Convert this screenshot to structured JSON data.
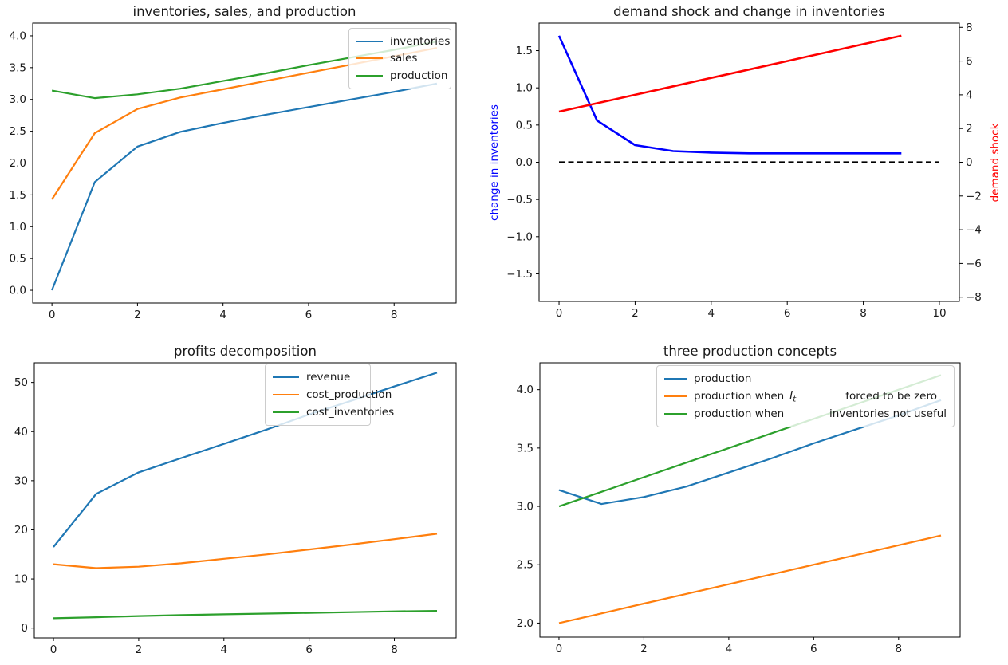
{
  "figure": {
    "background": "#ffffff",
    "text_color": "#1a1a1a",
    "accent_colors": {
      "mpl_blue": "#1f77b4",
      "mpl_orange": "#ff7f0e",
      "mpl_green": "#2ca02c",
      "pure_blue": "#0000ff",
      "pure_red": "#ff0000",
      "black": "#000000"
    }
  },
  "chart_data": [
    {
      "type": "line",
      "title": "inventories, sales, and production",
      "x": [
        0,
        1,
        2,
        3,
        4,
        5,
        6,
        7,
        8,
        9
      ],
      "xlim": [
        -0.45,
        9.45
      ],
      "xtick_values": [
        0,
        2,
        4,
        6,
        8
      ],
      "xtick_labels": [
        "0",
        "2",
        "4",
        "6",
        "8"
      ],
      "ylim": [
        -0.2,
        4.2
      ],
      "ytick_values": [
        0,
        0.5,
        1,
        1.5,
        2,
        2.5,
        3,
        3.5,
        4
      ],
      "ytick_labels": [
        "0.0",
        "0.5",
        "1.0",
        "1.5",
        "2.0",
        "2.5",
        "3.0",
        "3.5",
        "4.0"
      ],
      "grid": false,
      "legend_position": "upper right",
      "series": [
        {
          "name": "inventories",
          "color": "#1f77b4",
          "width": 2.2,
          "values": [
            0.0,
            1.7,
            2.26,
            2.49,
            2.63,
            2.76,
            2.88,
            3.0,
            3.12,
            3.25
          ]
        },
        {
          "name": "sales",
          "color": "#ff7f0e",
          "width": 2.2,
          "values": [
            1.43,
            2.47,
            2.85,
            3.03,
            3.16,
            3.29,
            3.42,
            3.55,
            3.68,
            3.81
          ]
        },
        {
          "name": "production",
          "color": "#2ca02c",
          "width": 2.2,
          "values": [
            3.14,
            3.02,
            3.08,
            3.17,
            3.29,
            3.41,
            3.54,
            3.66,
            3.78,
            3.91
          ]
        }
      ],
      "legend": {
        "rows": [
          {
            "label": "inventories",
            "series": 0
          },
          {
            "label": "sales",
            "series": 1
          },
          {
            "label": "production",
            "series": 2
          }
        ]
      }
    },
    {
      "type": "line",
      "title": "demand shock and change in inventories",
      "x": [
        0,
        1,
        2,
        3,
        4,
        5,
        6,
        7,
        8,
        9
      ],
      "xlim": [
        -0.525,
        10.525
      ],
      "xtick_values": [
        0,
        2,
        4,
        6,
        8,
        10
      ],
      "xtick_labels": [
        "0",
        "2",
        "4",
        "6",
        "8",
        "10"
      ],
      "ylim": [
        -1.87,
        1.87
      ],
      "ytick_values": [
        1.5,
        1.0,
        0.5,
        0.0,
        -0.5,
        -1.0,
        -1.5
      ],
      "ytick_labels": [
        "1.5",
        "1.0",
        "0.5",
        "0.0",
        "−0.5",
        "−1.0",
        "−1.5"
      ],
      "y2lim": [
        -8.25,
        8.25
      ],
      "y2tick_values": [
        8,
        6,
        4,
        2,
        0,
        -2,
        -4,
        -6,
        -8
      ],
      "y2tick_labels": [
        "8",
        "6",
        "4",
        "2",
        "0",
        "−2",
        "−4",
        "−6",
        "−8"
      ],
      "ylabel_left": {
        "text": "change in inventories",
        "color": "#0000ff"
      },
      "ylabel_right": {
        "text": "demand shock",
        "color": "#ff0000"
      },
      "grid": false,
      "series": [
        {
          "name": "zero line",
          "color": "#000000",
          "width": 2.2,
          "dash": [
            7,
            4.5
          ],
          "x": [
            0,
            10
          ],
          "values": [
            0,
            0
          ]
        },
        {
          "name": "change in inventories",
          "color": "#0000ff",
          "width": 2.6,
          "values": [
            1.7,
            0.56,
            0.23,
            0.15,
            0.13,
            0.12,
            0.12,
            0.12,
            0.12,
            0.12
          ]
        },
        {
          "name": "demand shock",
          "color": "#ff0000",
          "width": 2.6,
          "axis": "y2",
          "values": [
            3.0,
            3.5,
            4.0,
            4.5,
            5.0,
            5.5,
            6.0,
            6.5,
            7.0,
            7.5
          ]
        }
      ]
    },
    {
      "type": "line",
      "title": "profits decomposition",
      "x": [
        0,
        1,
        2,
        3,
        4,
        5,
        6,
        7,
        8,
        9
      ],
      "xlim": [
        -0.45,
        9.45
      ],
      "xtick_values": [
        0,
        2,
        4,
        6,
        8
      ],
      "xtick_labels": [
        "0",
        "2",
        "4",
        "6",
        "8"
      ],
      "ylim": [
        -2,
        54
      ],
      "ytick_values": [
        0,
        10,
        20,
        30,
        40,
        50
      ],
      "ytick_labels": [
        "0",
        "10",
        "20",
        "30",
        "40",
        "50"
      ],
      "grid": false,
      "legend_position": "upper right",
      "series": [
        {
          "name": "revenue",
          "color": "#1f77b4",
          "width": 2.2,
          "values": [
            16.5,
            27.3,
            31.7,
            34.6,
            37.5,
            40.4,
            43.5,
            46.3,
            49.2,
            52.0
          ]
        },
        {
          "name": "cost_production",
          "color": "#ff7f0e",
          "width": 2.2,
          "values": [
            13.0,
            12.2,
            12.5,
            13.2,
            14.1,
            15.0,
            16.0,
            17.0,
            18.1,
            19.2
          ]
        },
        {
          "name": "cost_inventories",
          "color": "#2ca02c",
          "width": 2.2,
          "values": [
            2.0,
            2.2,
            2.45,
            2.65,
            2.8,
            2.95,
            3.1,
            3.25,
            3.4,
            3.5
          ]
        }
      ],
      "legend": {
        "rows": [
          {
            "label": "revenue",
            "series": 0
          },
          {
            "label": "cost_production",
            "series": 1
          },
          {
            "label": "cost_inventories",
            "series": 2
          }
        ]
      }
    },
    {
      "type": "line",
      "title": "three production concepts",
      "x": [
        0,
        1,
        2,
        3,
        4,
        5,
        6,
        7,
        8,
        9
      ],
      "xlim": [
        -0.45,
        9.45
      ],
      "xtick_values": [
        0,
        2,
        4,
        6,
        8
      ],
      "xtick_labels": [
        "0",
        "2",
        "4",
        "6",
        "8"
      ],
      "ylim": [
        1.88,
        4.23
      ],
      "ytick_values": [
        2.0,
        2.5,
        3.0,
        3.5,
        4.0
      ],
      "ytick_labels": [
        "2.0",
        "2.5",
        "3.0",
        "3.5",
        "4.0"
      ],
      "grid": false,
      "legend_position": "upper center",
      "series": [
        {
          "name": "production",
          "color": "#1f77b4",
          "width": 2.2,
          "values": [
            3.14,
            3.02,
            3.08,
            3.17,
            3.29,
            3.41,
            3.54,
            3.66,
            3.78,
            3.91
          ]
        },
        {
          "name": "production when I_t forced to be zero",
          "color": "#ff7f0e",
          "width": 2.2,
          "values": [
            2.0,
            2.083,
            2.167,
            2.25,
            2.333,
            2.417,
            2.5,
            2.583,
            2.667,
            2.75
          ]
        },
        {
          "name": "production when inventories not useful",
          "color": "#2ca02c",
          "width": 2.2,
          "values": [
            3.0,
            3.125,
            3.25,
            3.375,
            3.5,
            3.625,
            3.75,
            3.875,
            4.0,
            4.125
          ]
        }
      ],
      "legend": {
        "rows": [
          {
            "label": "production",
            "series": 0
          },
          {
            "label": "production when",
            "math_var": "I",
            "math_sub": "t",
            "label_right": "forced to be zero",
            "series": 1
          },
          {
            "label": "production when",
            "label_right": "inventories not useful",
            "series": 2
          }
        ]
      }
    }
  ]
}
